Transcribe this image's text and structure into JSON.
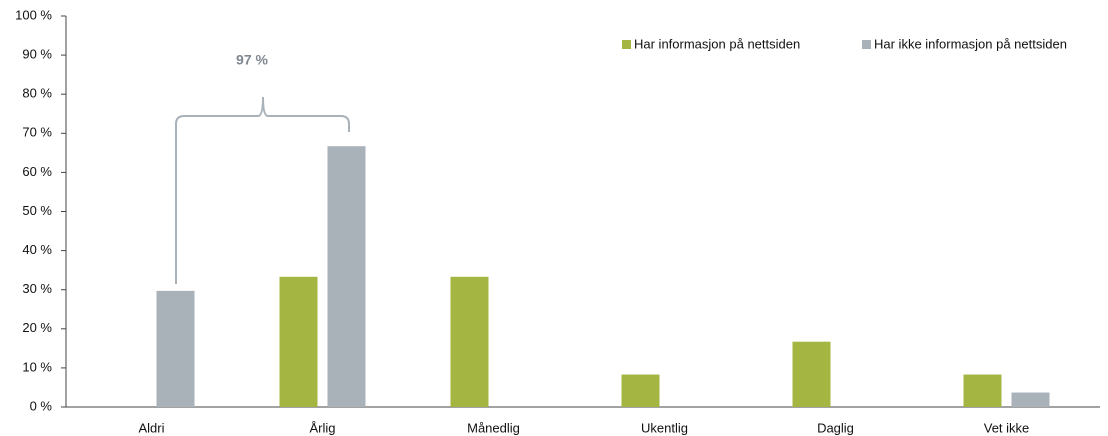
{
  "chart_data": {
    "type": "bar",
    "categories": [
      "Aldri",
      "Årlig",
      "Månedlig",
      "Ukentlig",
      "Daglig",
      "Vet ikke"
    ],
    "series": [
      {
        "name": "Har informasjon på nettsiden",
        "color": "#a5b542",
        "values": [
          0,
          33.3,
          33.3,
          8.3,
          16.7,
          8.3
        ]
      },
      {
        "name": "Har ikke informasjon på nettsiden",
        "color": "#aab2b9",
        "values": [
          29.7,
          66.7,
          0,
          0,
          0,
          3.7
        ]
      }
    ],
    "annotation": "97 %",
    "ylim": [
      0,
      100
    ],
    "yticks": [
      {
        "value": 0,
        "label": "0 %"
      },
      {
        "value": 10,
        "label": "10 %"
      },
      {
        "value": 20,
        "label": "20 %"
      },
      {
        "value": 30,
        "label": "30 %"
      },
      {
        "value": 40,
        "label": "40 %"
      },
      {
        "value": 50,
        "label": "50 %"
      },
      {
        "value": 60,
        "label": "60 %"
      },
      {
        "value": 70,
        "label": "70 %"
      },
      {
        "value": 80,
        "label": "80 %"
      },
      {
        "value": 90,
        "label": "90 %"
      },
      {
        "value": 100,
        "label": "100 %"
      }
    ],
    "grid": false,
    "legend": "top-right"
  }
}
